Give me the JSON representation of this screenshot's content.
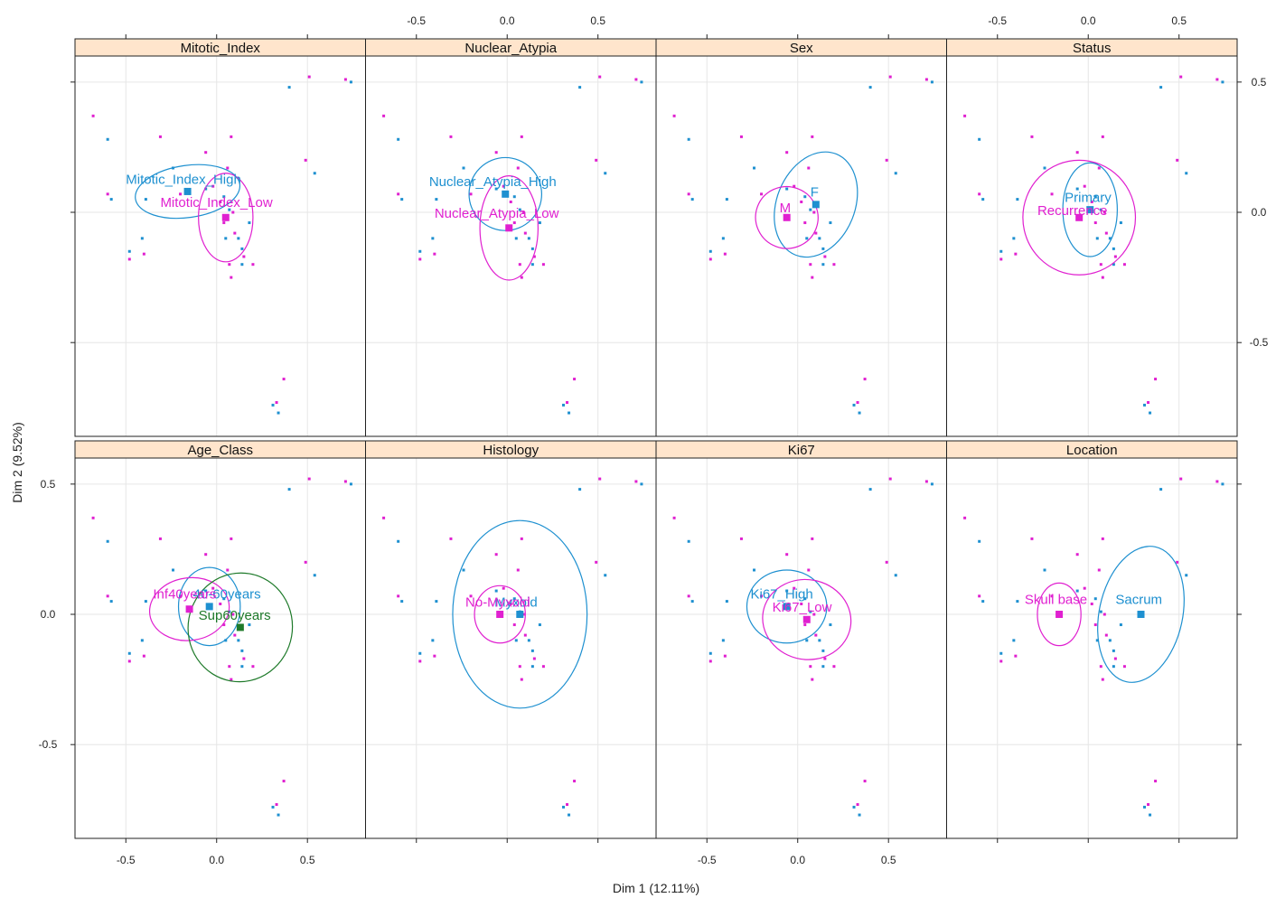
{
  "chart_data": {
    "type": "scatter",
    "xlabel": "Dim 1 (12.11%)",
    "ylabel": "Dim 2 (9.52%)",
    "xlim": [
      -0.78,
      0.82
    ],
    "ylim": [
      -0.86,
      0.6
    ],
    "x_ticks": [
      -0.5,
      0.0,
      0.5
    ],
    "y_ticks": [
      -0.5,
      0.0,
      0.5
    ],
    "x_tick_labels": [
      "-0.5",
      "0.0",
      "0.5"
    ],
    "y_tick_labels": [
      "-0.5",
      "0.0",
      "0.5"
    ],
    "grid": true,
    "colors": {
      "strip": "#ffe5cc",
      "cyan": "#1e90d0",
      "magenta": "#e020d0",
      "green": "#1e7a2a",
      "black": "#000000"
    },
    "points": [
      [
        -0.68,
        0.37,
        "magenta"
      ],
      [
        -0.6,
        0.28,
        "cyan"
      ],
      [
        -0.6,
        0.07,
        "magenta"
      ],
      [
        -0.58,
        0.05,
        "cyan"
      ],
      [
        -0.48,
        -0.15,
        "cyan"
      ],
      [
        -0.48,
        -0.18,
        "magenta"
      ],
      [
        -0.41,
        -0.1,
        "cyan"
      ],
      [
        -0.4,
        -0.16,
        "magenta"
      ],
      [
        -0.39,
        0.05,
        "cyan"
      ],
      [
        -0.31,
        0.29,
        "magenta"
      ],
      [
        -0.24,
        0.17,
        "cyan"
      ],
      [
        -0.2,
        0.07,
        "magenta"
      ],
      [
        -0.06,
        0.23,
        "magenta"
      ],
      [
        -0.06,
        0.09,
        "cyan"
      ],
      [
        -0.02,
        0.1,
        "magenta"
      ],
      [
        0.04,
        0.06,
        "cyan"
      ],
      [
        0.06,
        0.17,
        "magenta"
      ],
      [
        0.07,
        0.01,
        "cyan"
      ],
      [
        0.04,
        -0.04,
        "magenta"
      ],
      [
        0.05,
        -0.1,
        "cyan"
      ],
      [
        0.09,
        0.0,
        "magenta"
      ],
      [
        0.1,
        -0.08,
        "magenta"
      ],
      [
        0.12,
        -0.1,
        "cyan"
      ],
      [
        0.07,
        -0.2,
        "magenta"
      ],
      [
        0.08,
        -0.25,
        "magenta"
      ],
      [
        0.14,
        -0.2,
        "cyan"
      ],
      [
        0.15,
        -0.17,
        "magenta"
      ],
      [
        0.14,
        -0.14,
        "cyan"
      ],
      [
        0.08,
        0.29,
        "magenta"
      ],
      [
        0.02,
        0.04,
        "magenta"
      ],
      [
        0.18,
        -0.04,
        "cyan"
      ],
      [
        0.2,
        -0.2,
        "magenta"
      ],
      [
        0.4,
        0.48,
        "cyan"
      ],
      [
        0.51,
        0.52,
        "magenta"
      ],
      [
        0.71,
        0.51,
        "magenta"
      ],
      [
        0.74,
        0.5,
        "cyan"
      ],
      [
        0.49,
        0.2,
        "magenta"
      ],
      [
        0.54,
        0.15,
        "cyan"
      ],
      [
        0.37,
        -0.64,
        "magenta"
      ],
      [
        0.31,
        -0.74,
        "cyan"
      ],
      [
        0.33,
        -0.73,
        "magenta"
      ],
      [
        0.34,
        -0.77,
        "cyan"
      ]
    ],
    "panels": [
      {
        "title": "Mitotic_Index",
        "ellipses": [
          {
            "cx": -0.16,
            "cy": 0.08,
            "rx": 0.29,
            "ry": 0.1,
            "rot": -8,
            "color": "cyan"
          },
          {
            "cx": 0.05,
            "cy": -0.02,
            "rx": 0.15,
            "ry": 0.17,
            "rot": 0,
            "color": "magenta"
          }
        ],
        "labels": [
          {
            "text": "Mitotic_Index_High",
            "x": -0.16,
            "y": 0.08,
            "color": "cyan",
            "lx": -0.5,
            "ly": 0.11
          },
          {
            "text": "Mitotic_Index_Low",
            "x": 0.05,
            "y": -0.02,
            "color": "magenta",
            "lx": -0.31,
            "ly": 0.02
          }
        ]
      },
      {
        "title": "Nuclear_Atypia",
        "ellipses": [
          {
            "cx": -0.01,
            "cy": 0.07,
            "rx": 0.2,
            "ry": 0.14,
            "rot": 0,
            "color": "cyan"
          },
          {
            "cx": 0.01,
            "cy": -0.06,
            "rx": 0.16,
            "ry": 0.2,
            "rot": 0,
            "color": "magenta"
          }
        ],
        "labels": [
          {
            "text": "Nuclear_Atypia_High",
            "x": -0.01,
            "y": 0.07,
            "color": "cyan",
            "lx": -0.43,
            "ly": 0.1
          },
          {
            "text": "Nuclear_Atypia_Low",
            "x": 0.01,
            "y": -0.06,
            "color": "magenta",
            "lx": -0.4,
            "ly": -0.02
          }
        ]
      },
      {
        "title": "Sex",
        "ellipses": [
          {
            "cx": 0.1,
            "cy": 0.03,
            "rx": 0.3,
            "ry": 0.15,
            "rot": -68,
            "color": "cyan"
          },
          {
            "cx": -0.06,
            "cy": -0.02,
            "rx": 0.17,
            "ry": 0.12,
            "rot": -70,
            "color": "magenta"
          }
        ],
        "labels": [
          {
            "text": "F",
            "x": 0.1,
            "y": 0.03,
            "color": "cyan",
            "lx": 0.07,
            "ly": 0.06
          },
          {
            "text": "M",
            "x": -0.06,
            "y": -0.02,
            "color": "magenta",
            "lx": -0.1,
            "ly": 0.0
          }
        ]
      },
      {
        "title": "Status",
        "ellipses": [
          {
            "cx": 0.01,
            "cy": 0.01,
            "rx": 0.15,
            "ry": 0.18,
            "rot": 0,
            "color": "cyan"
          },
          {
            "cx": -0.05,
            "cy": -0.02,
            "rx": 0.31,
            "ry": 0.22,
            "rot": 0,
            "color": "magenta"
          }
        ],
        "labels": [
          {
            "text": "Primary",
            "x": 0.01,
            "y": 0.01,
            "color": "cyan",
            "lx": -0.13,
            "ly": 0.04
          },
          {
            "text": "Recurrence",
            "x": -0.05,
            "y": -0.02,
            "color": "magenta",
            "lx": -0.28,
            "ly": -0.01
          }
        ]
      },
      {
        "title": "Age_Class",
        "ellipses": [
          {
            "cx": -0.04,
            "cy": 0.03,
            "rx": 0.17,
            "ry": 0.15,
            "rot": 0,
            "color": "cyan"
          },
          {
            "cx": -0.15,
            "cy": 0.02,
            "rx": 0.22,
            "ry": 0.12,
            "rot": -8,
            "color": "magenta"
          },
          {
            "cx": 0.13,
            "cy": -0.05,
            "rx": 0.3,
            "ry": 0.2,
            "rot": -80,
            "color": "green"
          }
        ],
        "labels": [
          {
            "text": "40-60years",
            "x": -0.04,
            "y": 0.03,
            "color": "cyan",
            "lx": -0.13,
            "ly": 0.06
          },
          {
            "text": "Inf40years",
            "x": -0.15,
            "y": 0.02,
            "color": "magenta",
            "lx": -0.35,
            "ly": 0.06
          },
          {
            "text": "Sup60years",
            "x": 0.13,
            "y": -0.05,
            "color": "green",
            "lx": -0.1,
            "ly": -0.02
          }
        ]
      },
      {
        "title": "Histology",
        "ellipses": [
          {
            "cx": 0.07,
            "cy": 0.0,
            "rx": 0.37,
            "ry": 0.36,
            "rot": 0,
            "color": "cyan"
          },
          {
            "cx": -0.04,
            "cy": 0.0,
            "rx": 0.14,
            "ry": 0.11,
            "rot": 0,
            "color": "magenta"
          }
        ],
        "labels": [
          {
            "text": "Myxoid",
            "x": 0.07,
            "y": 0.0,
            "color": "cyan",
            "lx": -0.07,
            "ly": 0.03
          },
          {
            "text": "No-Myxoid",
            "x": -0.04,
            "y": 0.0,
            "color": "magenta",
            "lx": -0.23,
            "ly": 0.03
          }
        ]
      },
      {
        "title": "Ki67",
        "ellipses": [
          {
            "cx": -0.06,
            "cy": 0.03,
            "rx": 0.22,
            "ry": 0.14,
            "rot": 0,
            "color": "cyan"
          },
          {
            "cx": 0.05,
            "cy": -0.02,
            "rx": 0.22,
            "ry": 0.17,
            "rot": -80,
            "color": "magenta"
          }
        ],
        "labels": [
          {
            "text": "Ki67_High",
            "x": -0.06,
            "y": 0.03,
            "color": "cyan",
            "lx": -0.26,
            "ly": 0.06
          },
          {
            "text": "Ki67_Low",
            "x": 0.05,
            "y": -0.02,
            "color": "magenta",
            "lx": -0.14,
            "ly": 0.01
          }
        ]
      },
      {
        "title": "Location",
        "ellipses": [
          {
            "cx": 0.29,
            "cy": 0.0,
            "rx": 0.38,
            "ry": 0.16,
            "rot": -78,
            "color": "cyan"
          },
          {
            "cx": -0.16,
            "cy": 0.0,
            "rx": 0.12,
            "ry": 0.12,
            "rot": 0,
            "color": "magenta"
          }
        ],
        "labels": [
          {
            "text": "Sacrum",
            "x": 0.29,
            "y": 0.0,
            "color": "cyan",
            "lx": 0.15,
            "ly": 0.04
          },
          {
            "text": "Skull base",
            "x": -0.16,
            "y": 0.0,
            "color": "magenta",
            "lx": -0.35,
            "ly": 0.04
          }
        ]
      }
    ]
  }
}
